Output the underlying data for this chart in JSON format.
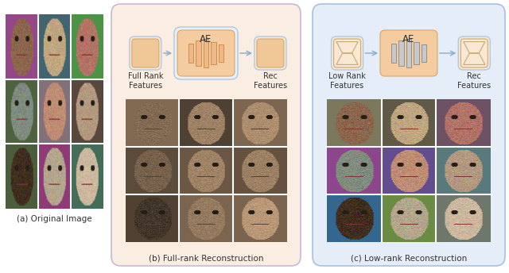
{
  "panel_a_label": "(a) Original Image",
  "panel_b_label": "(b) Full-rank Reconstruction",
  "panel_c_label": "(c) Low-rank Reconstruction",
  "panel_b_bg": "#faeee2",
  "panel_c_bg": "#e4edf8",
  "panel_b_border": "#c8b8d8",
  "panel_c_border": "#a8c0dc",
  "ae_box_fill_b": "#f5cba0",
  "ae_box_fill_c": "#f5cba0",
  "ae_box_border_b": "#d4a870",
  "ae_box_border_c": "#d4a870",
  "ae_inner_box_b": "#e8f0f8",
  "ae_inner_box_c": "#e8f0f8",
  "ae_inner_border_b": "#b0c8e0",
  "ae_inner_border_c": "#b0c8e0",
  "bar_color_b": "#f0b888",
  "bar_color_c": "#c8c8c8",
  "bar_border_b": "#c8904a",
  "bar_border_c": "#909090",
  "feat_box_fill_b": "#fae8d4",
  "feat_box_border_b": "#b0c8e0",
  "feat_box_inner_b": "#f0c898",
  "feat_box_inner_border_b": "#d4a870",
  "feat_box_fill_c": "#fae8d4",
  "feat_box_border_c": "#b0c8e0",
  "feat_box_inner_c": "#fae8d4",
  "feat_box_inner_border_c": "#c8a870",
  "connector_color": "#88aacc",
  "label_fontsize": 7.5,
  "ae_fontsize": 8.5,
  "sub_label_fontsize": 7,
  "text_color": "#333333"
}
